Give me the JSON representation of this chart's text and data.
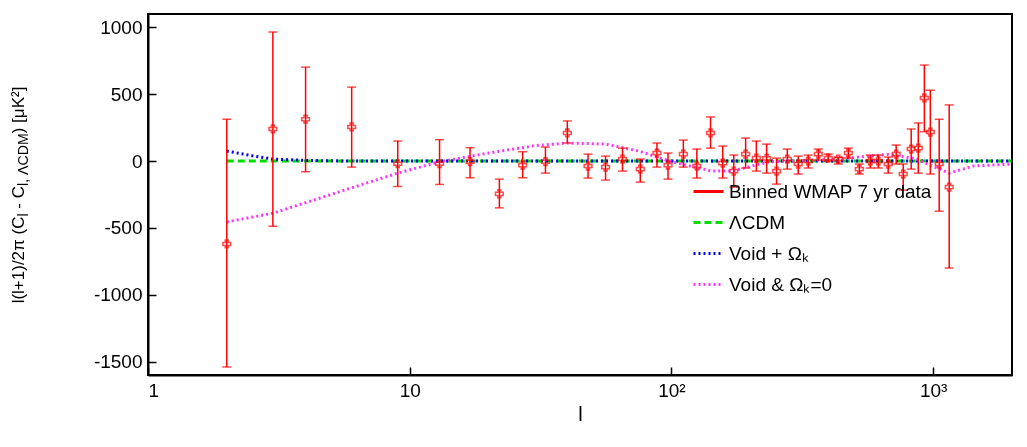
{
  "chart_data": {
    "type": "scatter",
    "xlabel": "l",
    "ylabel": "l(l+1)/2π  (C$_{l}$ - C$_{l, ΛCDM}$)  [μK²]",
    "log": "x",
    "legend": "bottom right",
    "grid": false,
    "xlim": [
      1,
      2000
    ],
    "xticks": [
      1,
      10,
      {
        "value": 100,
        "label": "10²"
      },
      {
        "value": 1000,
        "label": "10³"
      }
    ],
    "ylim": [
      -1600,
      1100
    ],
    "yticks": [
      -1500,
      -1000,
      -500,
      0,
      500,
      1000
    ],
    "series": [
      {
        "name": "Binned WMAP 7 yr data",
        "marker": "cross",
        "color": "#ff0000",
        "x": [
          2,
          3,
          4,
          6,
          9,
          13,
          17,
          22,
          27,
          33,
          40,
          48,
          56,
          65,
          76,
          88,
          97,
          111,
          125,
          141,
          157,
          173,
          192,
          211,
          231,
          252,
          277,
          305,
          333,
          364,
          397,
          434,
          474,
          522,
          575,
          617,
          673,
          722,
          768,
          824,
          877,
          925,
          975,
          1054,
          1151
        ],
        "values": [
          -620,
          240,
          313,
          255,
          -20,
          -20,
          -5,
          -245,
          -30,
          -5,
          210,
          -37,
          -45,
          15,
          -60,
          60,
          -30,
          52,
          -37,
          210,
          -15,
          -75,
          52,
          22,
          20,
          -75,
          15,
          -22,
          0,
          52,
          22,
          15,
          60,
          -60,
          0,
          0,
          -22,
          52,
          -97,
          90,
          97,
          472,
          217,
          -22,
          -195
        ],
        "errors": [
          [
            -1540,
            313
          ],
          [
            -487,
            965
          ],
          [
            -80,
            703
          ],
          [
            -45,
            553
          ],
          [
            -190,
            150
          ],
          [
            -175,
            160
          ],
          [
            -125,
            100
          ],
          [
            -350,
            -135
          ],
          [
            -125,
            70
          ],
          [
            -90,
            105
          ],
          [
            135,
            300
          ],
          [
            -127,
            52
          ],
          [
            -142,
            37
          ],
          [
            -75,
            97
          ],
          [
            -157,
            15
          ],
          [
            -45,
            135
          ],
          [
            -135,
            60
          ],
          [
            -45,
            157
          ],
          [
            -127,
            90
          ],
          [
            97,
            330
          ],
          [
            -127,
            112
          ],
          [
            -195,
            45
          ],
          [
            -52,
            172
          ],
          [
            -75,
            150
          ],
          [
            -90,
            127
          ],
          [
            -172,
            22
          ],
          [
            -60,
            90
          ],
          [
            -97,
            37
          ],
          [
            -52,
            45
          ],
          [
            7,
            90
          ],
          [
            0,
            52
          ],
          [
            -22,
            30
          ],
          [
            22,
            97
          ],
          [
            -97,
            -22
          ],
          [
            -52,
            45
          ],
          [
            -52,
            45
          ],
          [
            -90,
            30
          ],
          [
            -22,
            120
          ],
          [
            -217,
            -22
          ],
          [
            -60,
            240
          ],
          [
            -90,
            285
          ],
          [
            220,
            718
          ],
          [
            -97,
            530
          ],
          [
            -375,
            313
          ],
          [
            -800,
            420
          ]
        ]
      },
      {
        "name": "ΛCDM",
        "type": "line",
        "line_style": "dashed",
        "color": "#00dd00",
        "x": [
          2,
          2000
        ],
        "values": [
          0,
          0
        ]
      },
      {
        "name": "Void + Ωₖ",
        "type": "line",
        "line_style": "dotted",
        "color": "#0000ee",
        "x": [
          2,
          2.5,
          3,
          4,
          6,
          10,
          100,
          1000,
          2000
        ],
        "values": [
          75,
          40,
          15,
          5,
          0,
          0,
          0,
          0,
          0
        ]
      },
      {
        "name": "Void & Ωₖ=0",
        "type": "line",
        "line_style": "dotted",
        "color": "#ff33ff",
        "x": [
          2,
          3,
          6,
          9,
          13,
          20,
          30,
          40,
          56,
          75,
          100,
          143,
          170,
          236,
          400,
          673,
          850,
          1000,
          1150,
          1425,
          2000
        ],
        "values": [
          -455,
          -390,
          -200,
          -90,
          -5,
          60,
          115,
          135,
          127,
          75,
          -5,
          -75,
          -75,
          -5,
          10,
          50,
          20,
          -40,
          -90,
          -37,
          -22
        ]
      }
    ]
  }
}
